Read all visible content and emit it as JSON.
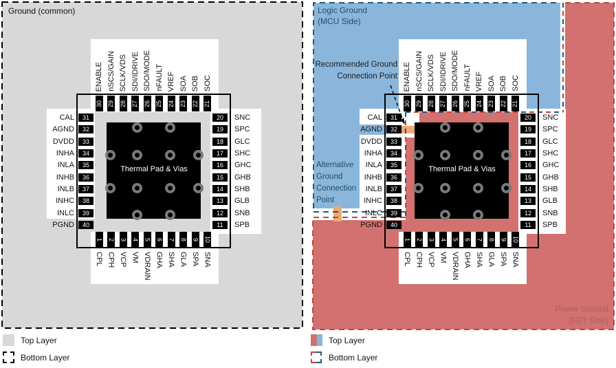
{
  "left_panel": {
    "region_label": "Ground (common)",
    "legend": [
      {
        "label": "Top Layer",
        "swatch": "gray-fill"
      },
      {
        "label": "Bottom Layer",
        "swatch": "dashed-outline"
      }
    ]
  },
  "right_panel": {
    "logic_ground": [
      "Logic Ground",
      "(MCU Side)"
    ],
    "power_ground": [
      "Power Ground",
      "(FET Side)"
    ],
    "recommended": [
      "Recommended Ground",
      "Connection Point"
    ],
    "alternative": [
      "Alternative",
      "Ground",
      "Connection",
      "Point"
    ],
    "legend": [
      {
        "label": "Top Layer",
        "swatch": "red-blue-fill"
      },
      {
        "label": "Bottom Layer",
        "swatch": "red-blue-dashed-outline"
      }
    ]
  },
  "chip": {
    "thermal_pad_label": "Thermal Pad & Vias",
    "pins": {
      "top": [
        {
          "n": 30,
          "name": "ENABLE"
        },
        {
          "n": 29,
          "name": "nSCS/GAIN"
        },
        {
          "n": 28,
          "name": "SCLK/VDS"
        },
        {
          "n": 27,
          "name": "SDI/IDRIVE"
        },
        {
          "n": 26,
          "name": "SDO/MODE"
        },
        {
          "n": 25,
          "name": "nFAULT"
        },
        {
          "n": 24,
          "name": "VREF"
        },
        {
          "n": 23,
          "name": "SOA"
        },
        {
          "n": 22,
          "name": "SOB"
        },
        {
          "n": 21,
          "name": "SOC"
        }
      ],
      "left": [
        {
          "n": 31,
          "name": "CAL"
        },
        {
          "n": 32,
          "name": "AGND"
        },
        {
          "n": 33,
          "name": "DVDD"
        },
        {
          "n": 34,
          "name": "INHA"
        },
        {
          "n": 35,
          "name": "INLA"
        },
        {
          "n": 36,
          "name": "INHB"
        },
        {
          "n": 37,
          "name": "INLB"
        },
        {
          "n": 38,
          "name": "INHC"
        },
        {
          "n": 39,
          "name": "INLC"
        },
        {
          "n": 40,
          "name": "PGND"
        }
      ],
      "right": [
        {
          "n": 20,
          "name": "SNC"
        },
        {
          "n": 19,
          "name": "SPC"
        },
        {
          "n": 18,
          "name": "GLC"
        },
        {
          "n": 17,
          "name": "SHC"
        },
        {
          "n": 16,
          "name": "GHC"
        },
        {
          "n": 15,
          "name": "GHB"
        },
        {
          "n": 14,
          "name": "SHB"
        },
        {
          "n": 13,
          "name": "GLB"
        },
        {
          "n": 12,
          "name": "SNB"
        },
        {
          "n": 11,
          "name": "SPB"
        }
      ],
      "bottom": [
        {
          "n": 1,
          "name": "CPL"
        },
        {
          "n": 2,
          "name": "CPH"
        },
        {
          "n": 3,
          "name": "VCP"
        },
        {
          "n": 4,
          "name": "VM"
        },
        {
          "n": 5,
          "name": "VDRAIN"
        },
        {
          "n": 6,
          "name": "GHA"
        },
        {
          "n": 7,
          "name": "SHA"
        },
        {
          "n": 8,
          "name": "GLA"
        },
        {
          "n": 9,
          "name": "SPA"
        },
        {
          "n": 10,
          "name": "SNA"
        }
      ]
    }
  },
  "colors": {
    "top_layer_gray": "#d8d8d8",
    "logic_ground_blue": "#8ab6db",
    "power_ground_red": "#d2716f",
    "blue_dash": "#1f5a78",
    "red_dash": "#c2443c",
    "connection_orange": "#f0a873",
    "logic_text": "#1e4f69",
    "power_text": "#a96060",
    "via_ring": "#7a7a7a"
  }
}
